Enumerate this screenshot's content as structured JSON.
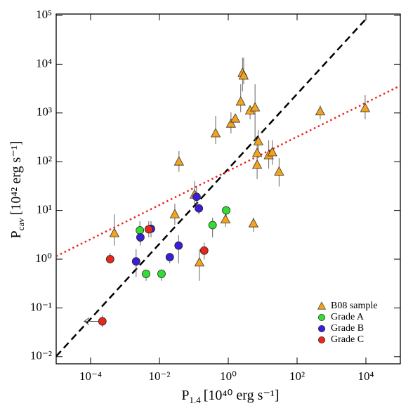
{
  "chart_data": {
    "type": "scatter",
    "xlabel": {
      "main": "P",
      "sub": "1.4",
      "rest": "[10⁴⁰ erg s⁻¹]"
    },
    "ylabel": {
      "main": "P",
      "sub": "cav",
      "rest": "[10⁴² erg s⁻¹]"
    },
    "xlog": true,
    "ylog": true,
    "xlim": [
      1e-05,
      100000
    ],
    "ylim": [
      0.00713,
      106900
    ],
    "xticks": [
      {
        "value": 0.0001,
        "label": "10⁻⁴"
      },
      {
        "value": 0.01,
        "label": "10⁻²"
      },
      {
        "value": 1,
        "label": "10⁰"
      },
      {
        "value": 100,
        "label": "10²"
      },
      {
        "value": 10000,
        "label": "10⁴"
      }
    ],
    "yticks": [
      {
        "value": 0.01,
        "label": "10⁻²"
      },
      {
        "value": 0.1,
        "label": "10⁻¹"
      },
      {
        "value": 1,
        "label": "10⁰"
      },
      {
        "value": 10,
        "label": "10¹"
      },
      {
        "value": 100,
        "label": "10²"
      },
      {
        "value": 1000,
        "label": "10³"
      },
      {
        "value": 10000,
        "label": "10⁴"
      },
      {
        "value": 100000,
        "label": "10⁵"
      }
    ],
    "legend": "lower right",
    "series": [
      {
        "name": "B08 sample",
        "marker": "triangle",
        "color": "#f4a31c",
        "x": [
          0.00049,
          0.028,
          0.105,
          0.037,
          0.145,
          0.43,
          0.83,
          1.2,
          1.6,
          2.3,
          2.6,
          2.8,
          4.3,
          6.0,
          5.4,
          7.5,
          6.9,
          6.9,
          15,
          19,
          30,
          470,
          9500
        ],
        "y": [
          3.4,
          8.3,
          21,
          100,
          0.85,
          380,
          6.5,
          600,
          760,
          1700,
          6600,
          5800,
          1120,
          1290,
          5.4,
          260,
          150,
          86,
          135,
          155,
          62,
          1070,
          1250
        ],
        "ylow": [
          1.9,
          5.1,
          13,
          62,
          0.36,
          230,
          4.6,
          380,
          630,
          1030,
          2760,
          3870,
          740,
          275,
          3.6,
          118,
          86,
          44,
          72,
          86,
          31,
          740,
          740
        ],
        "yhigh": [
          8.3,
          13.8,
          40,
          166,
          1.6,
          870,
          10.5,
          1030,
          870,
          3870,
          13600,
          13600,
          1430,
          3870,
          7.1,
          450,
          275,
          141,
          275,
          275,
          118,
          1430,
          2340
        ]
      },
      {
        "name": "Grade A",
        "marker": "circle",
        "color": "#33dd33",
        "x": [
          0.0027,
          0.0041,
          0.0115,
          0.35,
          0.87
        ],
        "y": [
          3.9,
          0.5,
          0.5,
          5,
          10
        ],
        "ylow": [
          2.2,
          0.36,
          0.36,
          2.8,
          6.0
        ],
        "yhigh": [
          6.0,
          0.59,
          0.59,
          7.1,
          12.4
        ]
      },
      {
        "name": "Grade B",
        "marker": "circle",
        "color": "#3a1fd9",
        "x": [
          0.0021,
          0.0028,
          0.0057,
          0.02,
          0.036,
          0.12,
          0.14
        ],
        "y": [
          0.9,
          2.8,
          4.2,
          1.1,
          1.9,
          19,
          11
        ],
        "ylow": [
          0.43,
          1.9,
          2.8,
          0.82,
          0.82,
          13,
          8.3
        ],
        "yhigh": [
          1.6,
          4.3,
          6.0,
          1.35,
          3.1,
          31,
          13.8
        ]
      },
      {
        "name": "Grade C",
        "marker": "circle",
        "color": "#e8281c",
        "x": [
          0.00037,
          0.0049,
          0.2,
          0.00022
        ],
        "y": [
          1.0,
          4.1,
          1.5,
          0.053
        ],
        "ylow": [
          0.82,
          2.8,
          0.98,
          0.04
        ],
        "yhigh": [
          1.35,
          6.0,
          2.2,
          0.07
        ],
        "xuplims": [
          false,
          false,
          false,
          true
        ]
      }
    ],
    "lines": [
      {
        "style": "dashed",
        "color": "#000000",
        "x": [
          1e-05,
          11000
        ],
        "y": [
          0.0102,
          91000
        ]
      },
      {
        "style": "dotted",
        "color": "#ee2222",
        "x": [
          1e-05,
          100000
        ],
        "y": [
          1.15,
          3630
        ]
      }
    ]
  }
}
